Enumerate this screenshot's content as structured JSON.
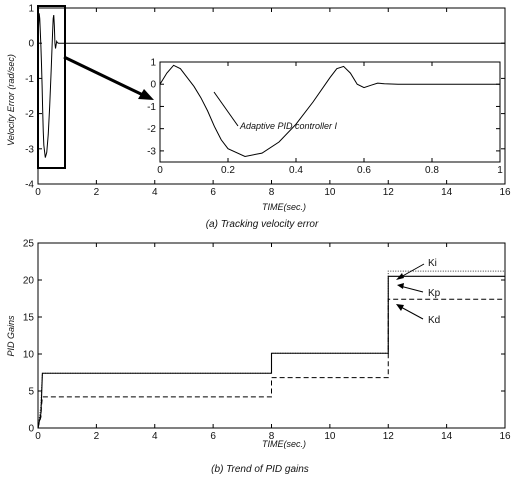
{
  "chart_data": [
    {
      "type": "line",
      "ylabel": "Velocity Error (rad/sec)",
      "xlabel": "TIME(sec.)",
      "caption": "(a) Tracking velocity error",
      "xlim": [
        0,
        16
      ],
      "ylim": [
        -4,
        1
      ],
      "xticks": [
        "0",
        "2",
        "4",
        "6",
        "8",
        "10",
        "12",
        "14",
        "16"
      ],
      "yticks": [
        "1",
        "0",
        "-1",
        "-2",
        "-3",
        "-4"
      ],
      "series": [
        {
          "x": [
            0,
            0.02,
            0.04,
            0.06,
            0.08,
            0.1,
            0.12,
            0.14,
            0.16,
            0.18,
            0.2,
            0.25,
            0.3,
            0.35,
            0.4,
            0.45,
            0.5,
            0.52,
            0.54,
            0.56,
            0.58,
            0.6,
            0.62,
            0.64,
            0.66,
            0.7,
            0.8,
            1.0,
            2,
            4,
            6,
            8,
            10,
            12,
            14,
            16
          ],
          "values": [
            0,
            0.5,
            0.85,
            0.7,
            0.3,
            -0.1,
            -0.6,
            -1.2,
            -1.9,
            -2.5,
            -2.9,
            -3.25,
            -3.1,
            -2.6,
            -1.8,
            -0.8,
            0.3,
            0.7,
            0.8,
            0.5,
            0,
            -0.15,
            -0.05,
            0.05,
            0.02,
            0,
            0,
            0,
            0,
            0,
            0,
            0,
            0,
            0,
            0,
            0
          ]
        }
      ],
      "inset": {
        "xlim": [
          0,
          1
        ],
        "ylim": [
          -3.5,
          1
        ],
        "xticks": [
          "0",
          "0.2",
          "0.4",
          "0.6",
          "0.8",
          "1"
        ],
        "yticks": [
          "1",
          "0",
          "-1",
          "-2",
          "-3"
        ],
        "annotation": "Adaptive PID controller I"
      }
    },
    {
      "type": "line",
      "ylabel": "PID Gains",
      "xlabel": "TIME(sec.)",
      "caption": "(b) Trend of PID gains",
      "xlim": [
        0,
        16
      ],
      "ylim": [
        0,
        25
      ],
      "xticks": [
        "0",
        "2",
        "4",
        "6",
        "8",
        "10",
        "12",
        "14",
        "16"
      ],
      "yticks": [
        "25",
        "20",
        "15",
        "10",
        "5",
        "0"
      ],
      "series": [
        {
          "name": "Ki",
          "x": [
            0,
            0.05,
            0.1,
            0.12,
            0.15,
            8,
            8,
            12,
            12,
            16
          ],
          "values": [
            0,
            1.5,
            3,
            5,
            7.4,
            7.4,
            10.1,
            10.1,
            21.2,
            21.2
          ]
        },
        {
          "name": "Kp",
          "x": [
            0,
            0.05,
            0.1,
            0.12,
            0.15,
            8,
            8,
            12,
            12,
            16
          ],
          "values": [
            0,
            1,
            2,
            4,
            7.4,
            7.4,
            10.1,
            10.1,
            20.5,
            20.5
          ]
        },
        {
          "name": "Kd",
          "x": [
            0,
            0.05,
            0.1,
            0.12,
            0.15,
            8,
            8,
            12,
            12,
            16
          ],
          "values": [
            0,
            0.8,
            1.5,
            3,
            4.2,
            4.2,
            6.8,
            6.8,
            17.4,
            17.4
          ]
        }
      ],
      "legend_labels": [
        "Ki",
        "Kp",
        "Kd"
      ]
    }
  ]
}
